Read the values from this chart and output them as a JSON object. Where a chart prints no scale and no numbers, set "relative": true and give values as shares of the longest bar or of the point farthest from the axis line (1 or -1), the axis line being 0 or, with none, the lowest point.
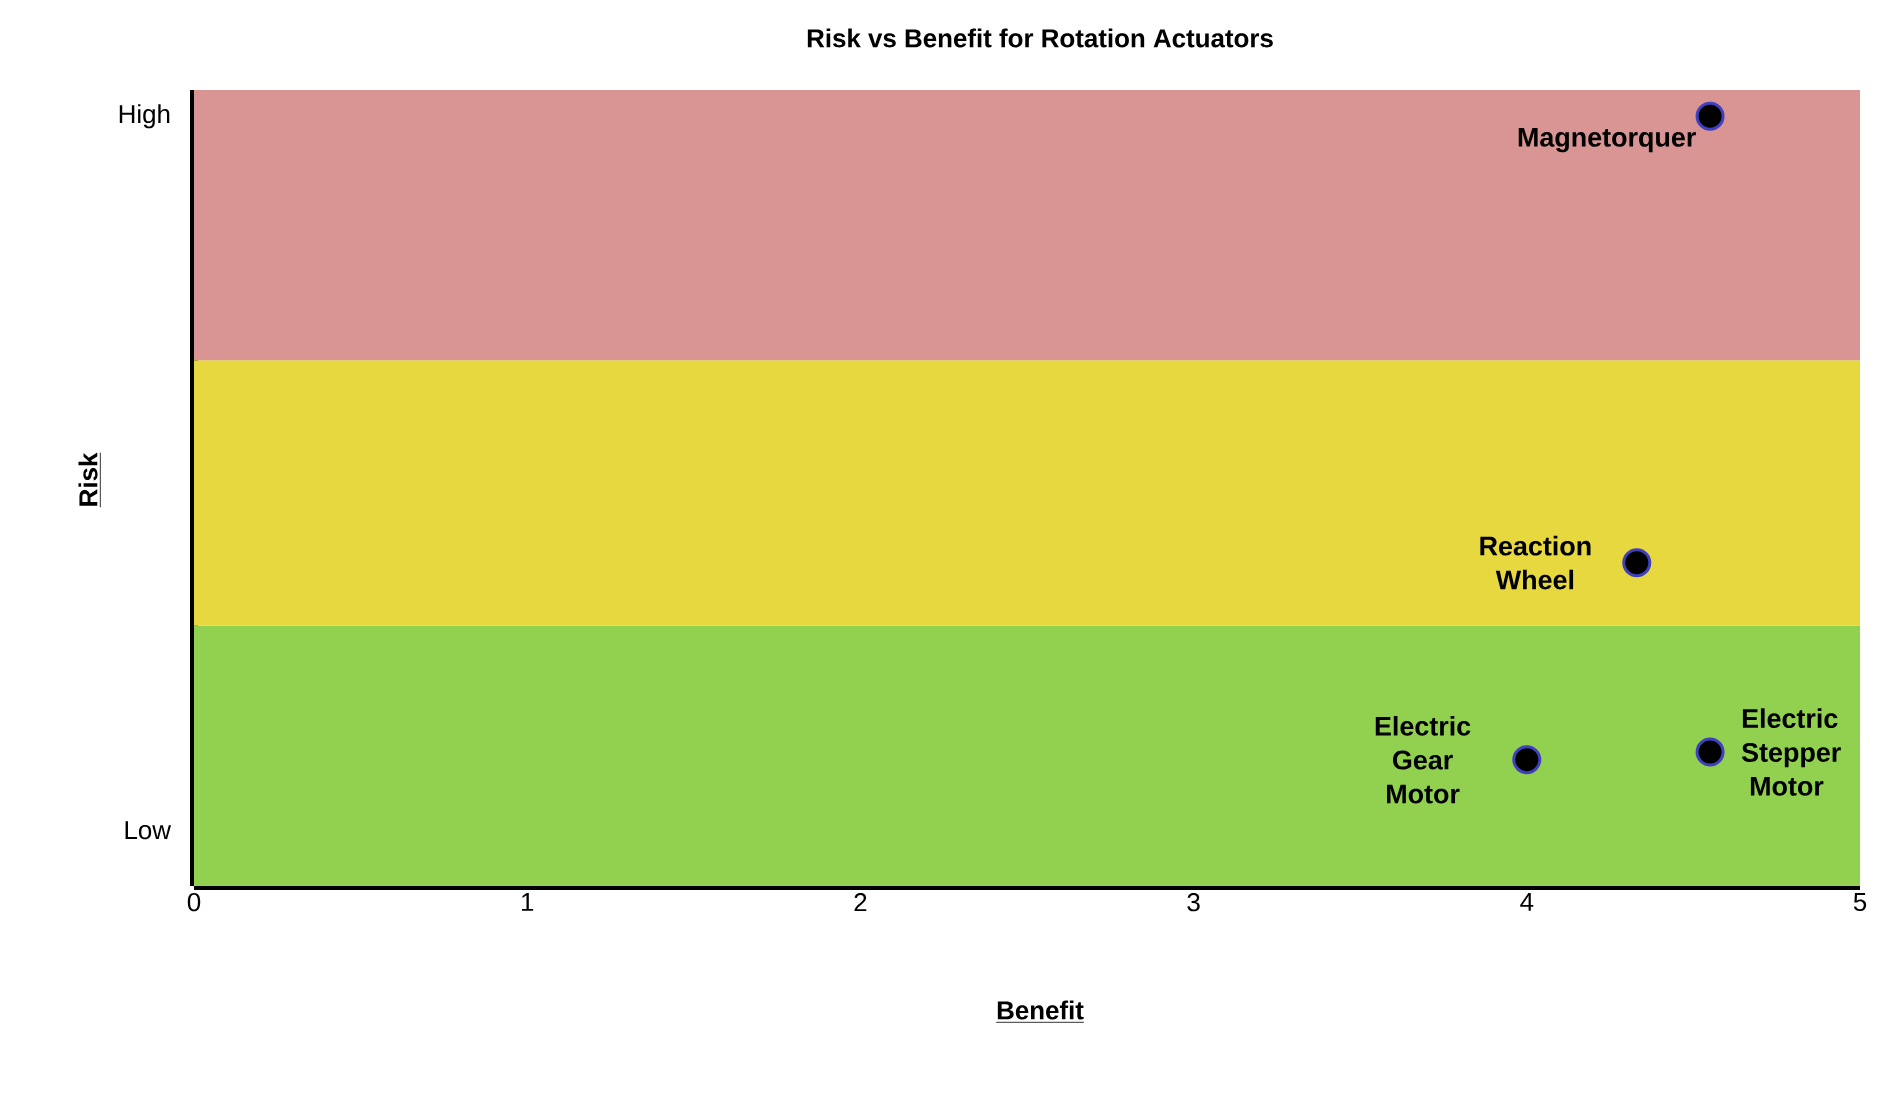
{
  "chart_data": {
    "type": "scatter",
    "title": "Risk vs Benefit for Rotation Actuators",
    "xlabel": "Benefit",
    "ylabel": "Risk",
    "x": [
      4.55,
      4.33,
      4.0,
      4.55
    ],
    "series": [
      {
        "color": "#000000",
        "values": [
          1,
          0.42,
          0.164,
          0.174
        ]
      }
    ],
    "relative": true,
    "xlim": [
      0,
      5
    ],
    "xticks": [
      0,
      1,
      2,
      3,
      4,
      5
    ],
    "bands": [
      {
        "axis": "y",
        "from": 0,
        "to": 0.338,
        "color": "#92d050"
      },
      {
        "axis": "y",
        "from": 0.338,
        "to": 0.683,
        "color": "#e6d83e"
      },
      {
        "axis": "y",
        "from": 0.683,
        "to": 1.034,
        "color": "#d99594"
      }
    ],
    "annotations": [
      {
        "text": "Magnetorquer",
        "x": 4.55,
        "y": 1
      },
      {
        "text": "Reaction Wheel",
        "x": 4.33,
        "y": 0.42
      },
      {
        "text": "Electric Gear Motor",
        "x": 4.0,
        "y": 0.164
      },
      {
        "text": "Electric Stepper Motor",
        "x": 4.55,
        "y": 0.174
      },
      "High",
      "Low"
    ],
    "grid": false
  }
}
